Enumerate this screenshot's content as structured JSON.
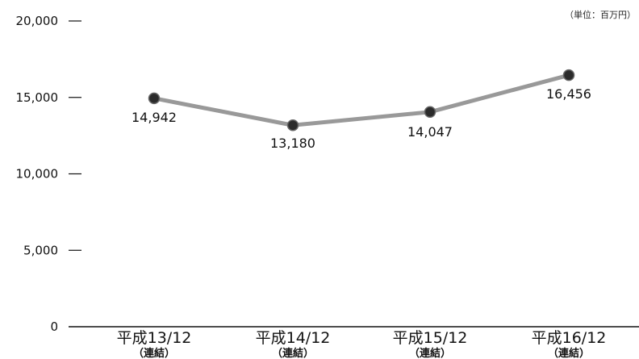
{
  "chart_data": {
    "type": "line",
    "unit_label": "（単位：百万円）",
    "categories": [
      {
        "main": "平成13/12",
        "sub": "（連結）"
      },
      {
        "main": "平成14/12",
        "sub": "（連結）"
      },
      {
        "main": "平成15/12",
        "sub": "（連結）"
      },
      {
        "main": "平成16/12",
        "sub": "（連結）"
      }
    ],
    "values": [
      14942,
      13180,
      14047,
      16456
    ],
    "value_labels": [
      "14,942",
      "13,180",
      "14,047",
      "16,456"
    ],
    "yticks": [
      {
        "value": 0,
        "label": "0"
      },
      {
        "value": 5000,
        "label": "5,000"
      },
      {
        "value": 10000,
        "label": "10,000"
      },
      {
        "value": 15000,
        "label": "15,000"
      },
      {
        "value": 20000,
        "label": "20,000"
      }
    ],
    "ylim": [
      0,
      20000
    ],
    "grid": false,
    "colors": {
      "line": "#999999",
      "marker_fill": "#2b2b2b",
      "marker_stroke": "#666666",
      "axis": "#111111"
    }
  }
}
